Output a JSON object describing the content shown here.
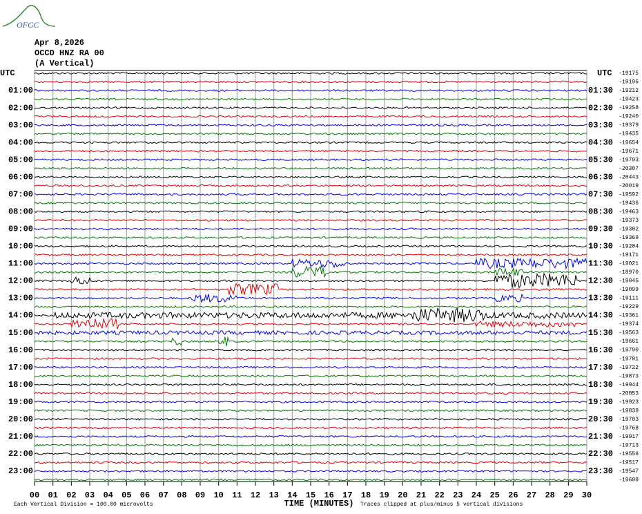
{
  "logo": "OFGC",
  "header": {
    "date": "Apr 8,2026",
    "station": "OCCD HNZ RA 00",
    "component": "(A Vertical)"
  },
  "left_axis": {
    "title": "UTC",
    "labels": [
      "01:00",
      "02:00",
      "03:00",
      "04:00",
      "05:00",
      "06:00",
      "07:00",
      "08:00",
      "09:00",
      "10:00",
      "11:00",
      "12:00",
      "13:00",
      "14:00",
      "15:00",
      "16:00",
      "17:00",
      "18:00",
      "19:00",
      "20:00",
      "21:00",
      "22:00",
      "23:00"
    ]
  },
  "right_axis": {
    "title": "UTC",
    "labels": [
      "01:30",
      "02:30",
      "03:30",
      "04:30",
      "05:30",
      "06:30",
      "07:30",
      "08:30",
      "09:30",
      "10:30",
      "11:30",
      "12:30",
      "13:30",
      "14:30",
      "15:30",
      "16:30",
      "17:30",
      "18:30",
      "19:30",
      "20:30",
      "21:30",
      "22:30",
      "23:30"
    ]
  },
  "trace_offsets": [
    "-19175",
    "-19196",
    "-19212",
    "-19423",
    "-19258",
    "-19240",
    "-19379",
    "-19435",
    "-19654",
    "-19671",
    "-19793",
    "-20307",
    "-20443",
    "-20019",
    "-19592",
    "-19436",
    "-19463",
    "-19373",
    "-19302",
    "-19369",
    "-19204",
    "-19171",
    "-19021",
    "-18970",
    "-19045",
    "-19099",
    "-19111",
    "-19229",
    "-19361",
    "-19374",
    "-19563",
    "-19661",
    "-19790",
    "-19701",
    "-19722",
    "-19873",
    "-19944",
    "-20053",
    "-19923",
    "-19838",
    "-19703",
    "-19768",
    "-19917",
    "-19713",
    "-19556",
    "-19517",
    "-19547",
    "-19608"
  ],
  "x_axis": {
    "title": "TIME (MINUTES)",
    "labels": [
      "00",
      "01",
      "02",
      "03",
      "04",
      "05",
      "06",
      "07",
      "08",
      "09",
      "10",
      "11",
      "12",
      "13",
      "14",
      "15",
      "16",
      "17",
      "18",
      "19",
      "20",
      "21",
      "22",
      "23",
      "24",
      "25",
      "26",
      "27",
      "28",
      "29",
      "30"
    ]
  },
  "footer": {
    "scale": "Each Vertical Division =  100.00 microvolts",
    "clip": "Traces clipped at plus/minus 5 vertical divisions"
  }
}
